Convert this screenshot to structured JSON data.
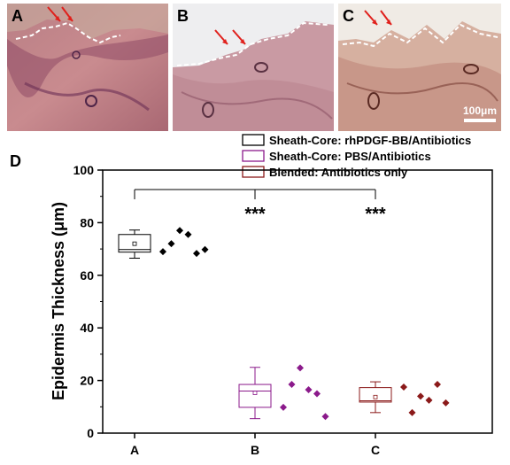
{
  "panels": [
    {
      "label": "A",
      "scale_bar": ""
    },
    {
      "label": "B",
      "scale_bar": ""
    },
    {
      "label": "C",
      "scale_bar": "100μm"
    }
  ],
  "chart_data": {
    "type": "box",
    "panel_label": "D",
    "categories": [
      "A",
      "B",
      "C"
    ],
    "ylabel": "Epidermis Thickness (μm)",
    "xlabel": "",
    "ylim": [
      0,
      100
    ],
    "yticks": [
      0,
      20,
      40,
      60,
      80,
      100
    ],
    "significance": "***",
    "series": [
      {
        "name": "Sheath-Core: rhPDGF-BB/Antibiotics",
        "color": "#000000",
        "box": {
          "min": 66.5,
          "q1": 68.8,
          "median": 69.8,
          "q3": 75.5,
          "max": 77.2,
          "mean": 72.0
        },
        "points": [
          69.0,
          72.0,
          77.0,
          75.5,
          68.3,
          69.8
        ]
      },
      {
        "name": "Sheath-Core: PBS/Antibiotics",
        "color": "#8b1a8b",
        "box": {
          "min": 5.5,
          "q1": 9.8,
          "median": 16.0,
          "q3": 18.5,
          "max": 25.0,
          "mean": 15.3
        },
        "points": [
          9.8,
          18.5,
          24.8,
          16.5,
          15.0,
          6.3
        ]
      },
      {
        "name": "Blended: Antibiotics only",
        "color": "#8b1a1a",
        "box": {
          "min": 7.8,
          "q1": 11.8,
          "median": 12.3,
          "q3": 17.3,
          "max": 19.5,
          "mean": 13.7
        },
        "points": [
          17.5,
          7.8,
          14.0,
          12.5,
          18.5,
          11.5
        ]
      }
    ]
  }
}
